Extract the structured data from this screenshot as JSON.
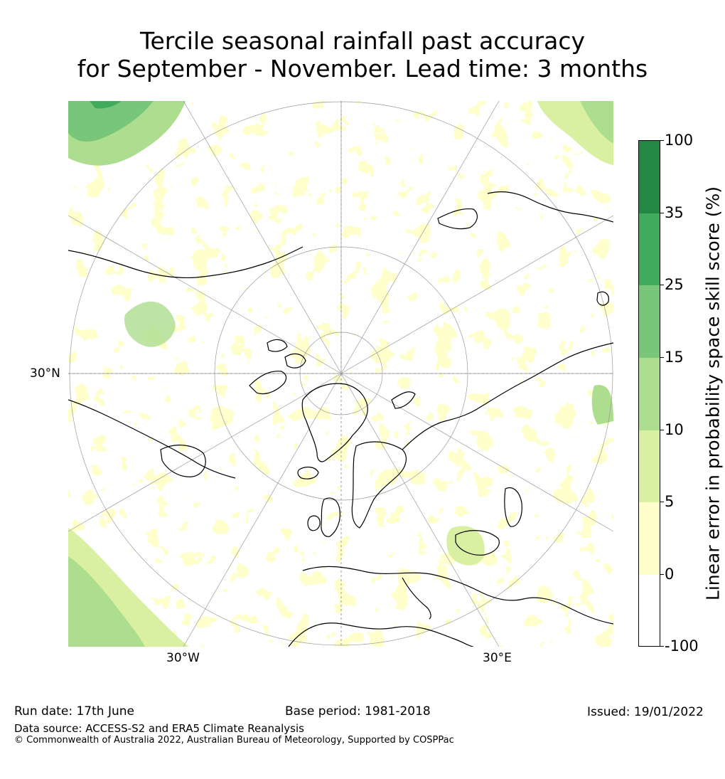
{
  "title": {
    "line1": "Tercile seasonal rainfall past accuracy",
    "line2": "for September - November. Lead time: 3 months"
  },
  "map": {
    "projection": "north polar stereographic",
    "labels": {
      "lat": "30°N",
      "lon_west": "30°W",
      "lon_east": "30°E"
    }
  },
  "colorbar": {
    "label": "Linear error in probability space skill score (%)",
    "ticks": [
      "100",
      "35",
      "25",
      "15",
      "10",
      "5",
      "0",
      "-100"
    ],
    "bins": [
      {
        "range": "35 to 100",
        "color": "#228844"
      },
      {
        "range": "25 to 35",
        "color": "#41ab5d"
      },
      {
        "range": "15 to 25",
        "color": "#78c679"
      },
      {
        "range": "10 to 15",
        "color": "#addd8e"
      },
      {
        "range": "5 to 10",
        "color": "#d9f0a3"
      },
      {
        "range": "0 to 5",
        "color": "#ffffcc"
      },
      {
        "range": "-100 to 0",
        "color": "#ffffff"
      }
    ]
  },
  "footer": {
    "run_date": "Run date: 17th June",
    "base_period": "Base period: 1981-2018",
    "issued": "Issued: 19/01/2022",
    "data_source": "Data source: ACCESS-S2 and ERA5 Climate Reanalysis",
    "copyright": "© Commonwealth of Australia 2022, Australian Bureau of Meteorology, Supported by COSPPac"
  }
}
